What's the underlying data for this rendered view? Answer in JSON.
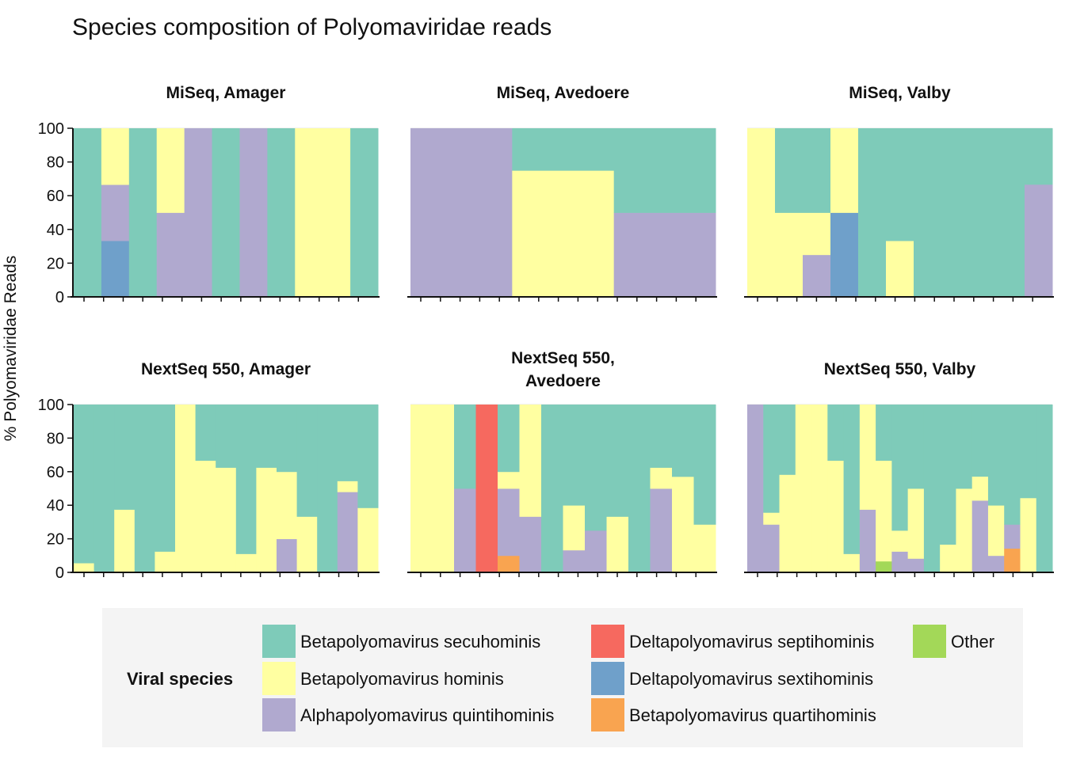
{
  "title": "Species composition of Polyomaviridae reads",
  "ylabel": "% Polyomaviridae Reads",
  "legend": {
    "title": "Viral species",
    "entries": [
      {
        "name": "Betapolyomavirus secuhominis",
        "color": "#7ECBB9"
      },
      {
        "name": "Betapolyomavirus hominis",
        "color": "#FFFFA1"
      },
      {
        "name": "Alphapolyomavirus quintihominis",
        "color": "#B0A9CF"
      },
      {
        "name": "Deltapolyomavirus septihominis",
        "color": "#F6695F"
      },
      {
        "name": "Deltapolyomavirus sextihominis",
        "color": "#6FA0CA"
      },
      {
        "name": "Betapolyomavirus quartihominis",
        "color": "#F9A450"
      },
      {
        "name": "Other",
        "color": "#A3D858"
      }
    ]
  },
  "chart_data": {
    "type": "bar",
    "stacked": true,
    "ylim": [
      0,
      100
    ],
    "yticks": [
      0,
      20,
      40,
      60,
      80,
      100
    ],
    "grid": true,
    "legend_position": "bottom",
    "stack_order": [
      "Other",
      "Betapolyomavirus quartihominis",
      "Deltapolyomavirus sextihominis",
      "Deltapolyomavirus septihominis",
      "Alphapolyomavirus quintihominis",
      "Betapolyomavirus hominis",
      "Betapolyomavirus secuhominis"
    ],
    "panels": [
      {
        "title": [
          "MiSeq, Amager"
        ],
        "samples": [
          {
            "Betapolyomavirus secuhominis": 100
          },
          {
            "Deltapolyomavirus sextihominis": 33.3,
            "Alphapolyomavirus quintihominis": 33.3,
            "Betapolyomavirus hominis": 33.4
          },
          {
            "Betapolyomavirus secuhominis": 100
          },
          {
            "Alphapolyomavirus quintihominis": 50,
            "Betapolyomavirus hominis": 50
          },
          {
            "Alphapolyomavirus quintihominis": 100
          },
          {
            "Betapolyomavirus secuhominis": 100
          },
          {
            "Alphapolyomavirus quintihominis": 100
          },
          {
            "Betapolyomavirus secuhominis": 100
          },
          {
            "Betapolyomavirus hominis": 100
          },
          {
            "Betapolyomavirus hominis": 100
          },
          {
            "Betapolyomavirus secuhominis": 100
          }
        ]
      },
      {
        "title": [
          "MiSeq, Avedoere"
        ],
        "samples": [
          {
            "Alphapolyomavirus quintihominis": 100
          },
          {
            "Betapolyomavirus hominis": 75,
            "Betapolyomavirus secuhominis": 25
          },
          {
            "Alphapolyomavirus quintihominis": 50,
            "Betapolyomavirus secuhominis": 50
          }
        ]
      },
      {
        "title": [
          "MiSeq, Valby"
        ],
        "samples": [
          {
            "Betapolyomavirus hominis": 100
          },
          {
            "Betapolyomavirus hominis": 50,
            "Betapolyomavirus secuhominis": 50
          },
          {
            "Alphapolyomavirus quintihominis": 25,
            "Betapolyomavirus hominis": 25,
            "Betapolyomavirus secuhominis": 50
          },
          {
            "Deltapolyomavirus sextihominis": 50,
            "Betapolyomavirus hominis": 50
          },
          {
            "Betapolyomavirus secuhominis": 100
          },
          {
            "Betapolyomavirus hominis": 33.3,
            "Betapolyomavirus secuhominis": 66.7
          },
          {
            "Betapolyomavirus secuhominis": 100
          },
          {
            "Betapolyomavirus secuhominis": 100
          },
          {
            "Betapolyomavirus secuhominis": 100
          },
          {
            "Betapolyomavirus secuhominis": 100
          },
          {
            "Alphapolyomavirus quintihominis": 66.7,
            "Betapolyomavirus secuhominis": 33.3
          }
        ]
      },
      {
        "title": [
          "NextSeq 550, Amager"
        ],
        "samples": [
          {
            "Betapolyomavirus hominis": 5.6,
            "Betapolyomavirus secuhominis": 94.4
          },
          {
            "Betapolyomavirus secuhominis": 100
          },
          {
            "Betapolyomavirus hominis": 37.5,
            "Betapolyomavirus secuhominis": 62.5
          },
          {
            "Betapolyomavirus secuhominis": 100
          },
          {
            "Betapolyomavirus hominis": 12.5,
            "Betapolyomavirus secuhominis": 87.5
          },
          {
            "Betapolyomavirus hominis": 100
          },
          {
            "Betapolyomavirus hominis": 66.7,
            "Betapolyomavirus secuhominis": 33.3
          },
          {
            "Betapolyomavirus hominis": 62.5,
            "Betapolyomavirus secuhominis": 37.5
          },
          {
            "Betapolyomavirus hominis": 11.1,
            "Betapolyomavirus secuhominis": 88.9
          },
          {
            "Betapolyomavirus hominis": 62.5,
            "Betapolyomavirus secuhominis": 37.5
          },
          {
            "Alphapolyomavirus quintihominis": 20,
            "Betapolyomavirus hominis": 40,
            "Betapolyomavirus secuhominis": 40
          },
          {
            "Betapolyomavirus hominis": 33.3,
            "Betapolyomavirus secuhominis": 66.7
          },
          {
            "Betapolyomavirus secuhominis": 100
          },
          {
            "Alphapolyomavirus quintihominis": 48,
            "Betapolyomavirus hominis": 6.5,
            "Betapolyomavirus secuhominis": 45.5
          },
          {
            "Betapolyomavirus hominis": 38.5,
            "Betapolyomavirus secuhominis": 61.5
          }
        ]
      },
      {
        "title": [
          "NextSeq 550,",
          "Avedoere"
        ],
        "samples": [
          {
            "Betapolyomavirus hominis": 100
          },
          {
            "Betapolyomavirus hominis": 100
          },
          {
            "Alphapolyomavirus quintihominis": 50,
            "Betapolyomavirus secuhominis": 50
          },
          {
            "Deltapolyomavirus septihominis": 100
          },
          {
            "Betapolyomavirus quartihominis": 10,
            "Alphapolyomavirus quintihominis": 40,
            "Betapolyomavirus hominis": 10,
            "Betapolyomavirus secuhominis": 40
          },
          {
            "Alphapolyomavirus quintihominis": 33.3,
            "Betapolyomavirus hominis": 66.7
          },
          {
            "Betapolyomavirus secuhominis": 100
          },
          {
            "Alphapolyomavirus quintihominis": 13.3,
            "Betapolyomavirus hominis": 26.7,
            "Betapolyomavirus secuhominis": 60
          },
          {
            "Alphapolyomavirus quintihominis": 25,
            "Betapolyomavirus secuhominis": 75
          },
          {
            "Betapolyomavirus hominis": 33.3,
            "Betapolyomavirus secuhominis": 66.7
          },
          {
            "Betapolyomavirus secuhominis": 100
          },
          {
            "Alphapolyomavirus quintihominis": 50,
            "Betapolyomavirus hominis": 12.5,
            "Betapolyomavirus secuhominis": 37.5
          },
          {
            "Betapolyomavirus hominis": 57.1,
            "Betapolyomavirus secuhominis": 42.9
          },
          {
            "Betapolyomavirus hominis": 28.6,
            "Betapolyomavirus secuhominis": 71.4
          }
        ]
      },
      {
        "title": [
          "NextSeq 550, Valby"
        ],
        "samples": [
          {
            "Alphapolyomavirus quintihominis": 100
          },
          {
            "Alphapolyomavirus quintihominis": 28.6,
            "Betapolyomavirus hominis": 7.1,
            "Betapolyomavirus secuhominis": 64.3
          },
          {
            "Betapolyomavirus hominis": 58.3,
            "Betapolyomavirus secuhominis": 41.7
          },
          {
            "Betapolyomavirus hominis": 100
          },
          {
            "Betapolyomavirus hominis": 100
          },
          {
            "Betapolyomavirus hominis": 66.7,
            "Betapolyomavirus secuhominis": 33.3
          },
          {
            "Betapolyomavirus hominis": 11.1,
            "Betapolyomavirus secuhominis": 88.9
          },
          {
            "Alphapolyomavirus quintihominis": 37.5,
            "Betapolyomavirus hominis": 62.5
          },
          {
            "Other": 6.7,
            "Betapolyomavirus hominis": 60,
            "Betapolyomavirus secuhominis": 33.3
          },
          {
            "Alphapolyomavirus quintihominis": 12.5,
            "Betapolyomavirus hominis": 12.5,
            "Betapolyomavirus secuhominis": 75
          },
          {
            "Alphapolyomavirus quintihominis": 8.3,
            "Betapolyomavirus hominis": 41.7,
            "Betapolyomavirus secuhominis": 50
          },
          {
            "Betapolyomavirus secuhominis": 100
          },
          {
            "Betapolyomavirus hominis": 16.7,
            "Betapolyomavirus secuhominis": 83.3
          },
          {
            "Betapolyomavirus hominis": 50,
            "Betapolyomavirus secuhominis": 50
          },
          {
            "Alphapolyomavirus quintihominis": 42.9,
            "Betapolyomavirus hominis": 14.3,
            "Betapolyomavirus secuhominis": 42.8
          },
          {
            "Alphapolyomavirus quintihominis": 10,
            "Betapolyomavirus hominis": 30,
            "Betapolyomavirus secuhominis": 60
          },
          {
            "Betapolyomavirus quartihominis": 14.3,
            "Alphapolyomavirus quintihominis": 14.3,
            "Betapolyomavirus secuhominis": 71.4
          },
          {
            "Betapolyomavirus hominis": 44.4,
            "Betapolyomavirus secuhominis": 55.6
          },
          {
            "Betapolyomavirus secuhominis": 100
          }
        ]
      }
    ]
  }
}
